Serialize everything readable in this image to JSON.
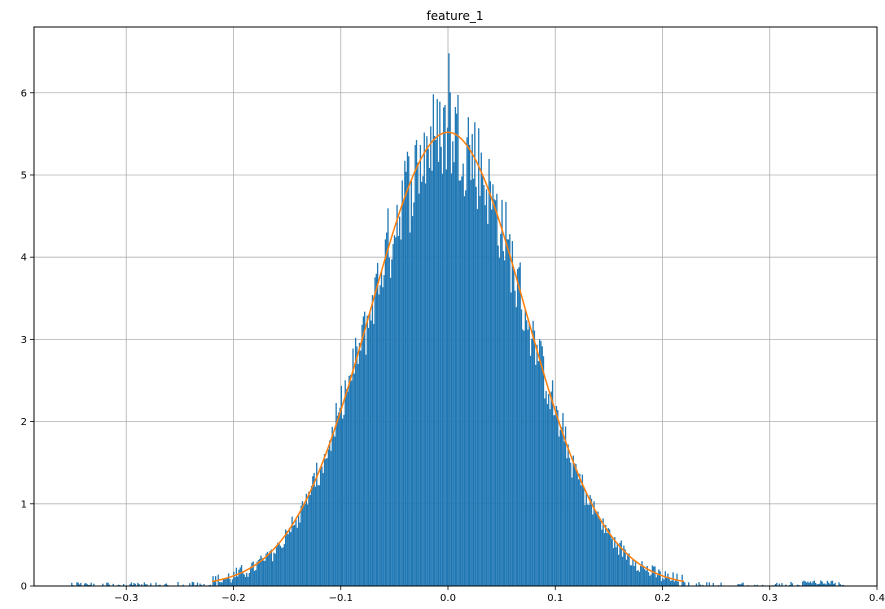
{
  "chart_data": {
    "type": "bar",
    "title": "feature_1",
    "xlabel": "",
    "ylabel": "",
    "xlim": [
      -0.386,
      0.4
    ],
    "ylim": [
      0,
      6.8
    ],
    "xticks": [
      -0.3,
      -0.2,
      -0.1,
      0.0,
      0.1,
      0.2,
      0.3,
      0.4
    ],
    "xtick_labels": [
      "−0.3",
      "−0.2",
      "−0.1",
      "0.0",
      "0.1",
      "0.2",
      "0.3",
      "0.4"
    ],
    "yticks": [
      0,
      1,
      2,
      3,
      4,
      5,
      6
    ],
    "ytick_labels": [
      "0",
      "1",
      "2",
      "3",
      "4",
      "5",
      "6"
    ],
    "grid": true,
    "bar_color": "#1f77b4",
    "line_color": "#ff7f0e",
    "histogram": {
      "range": [
        -0.355,
        0.37
      ],
      "bin_count": 600,
      "center": 0.0,
      "sd": 0.072,
      "peak_density": 5.55,
      "max_bar": 6.48
    },
    "fit_curve": {
      "mean": 0.0,
      "sd": 0.0725,
      "peak": 5.52,
      "x_range": [
        -0.22,
        0.22
      ]
    }
  }
}
